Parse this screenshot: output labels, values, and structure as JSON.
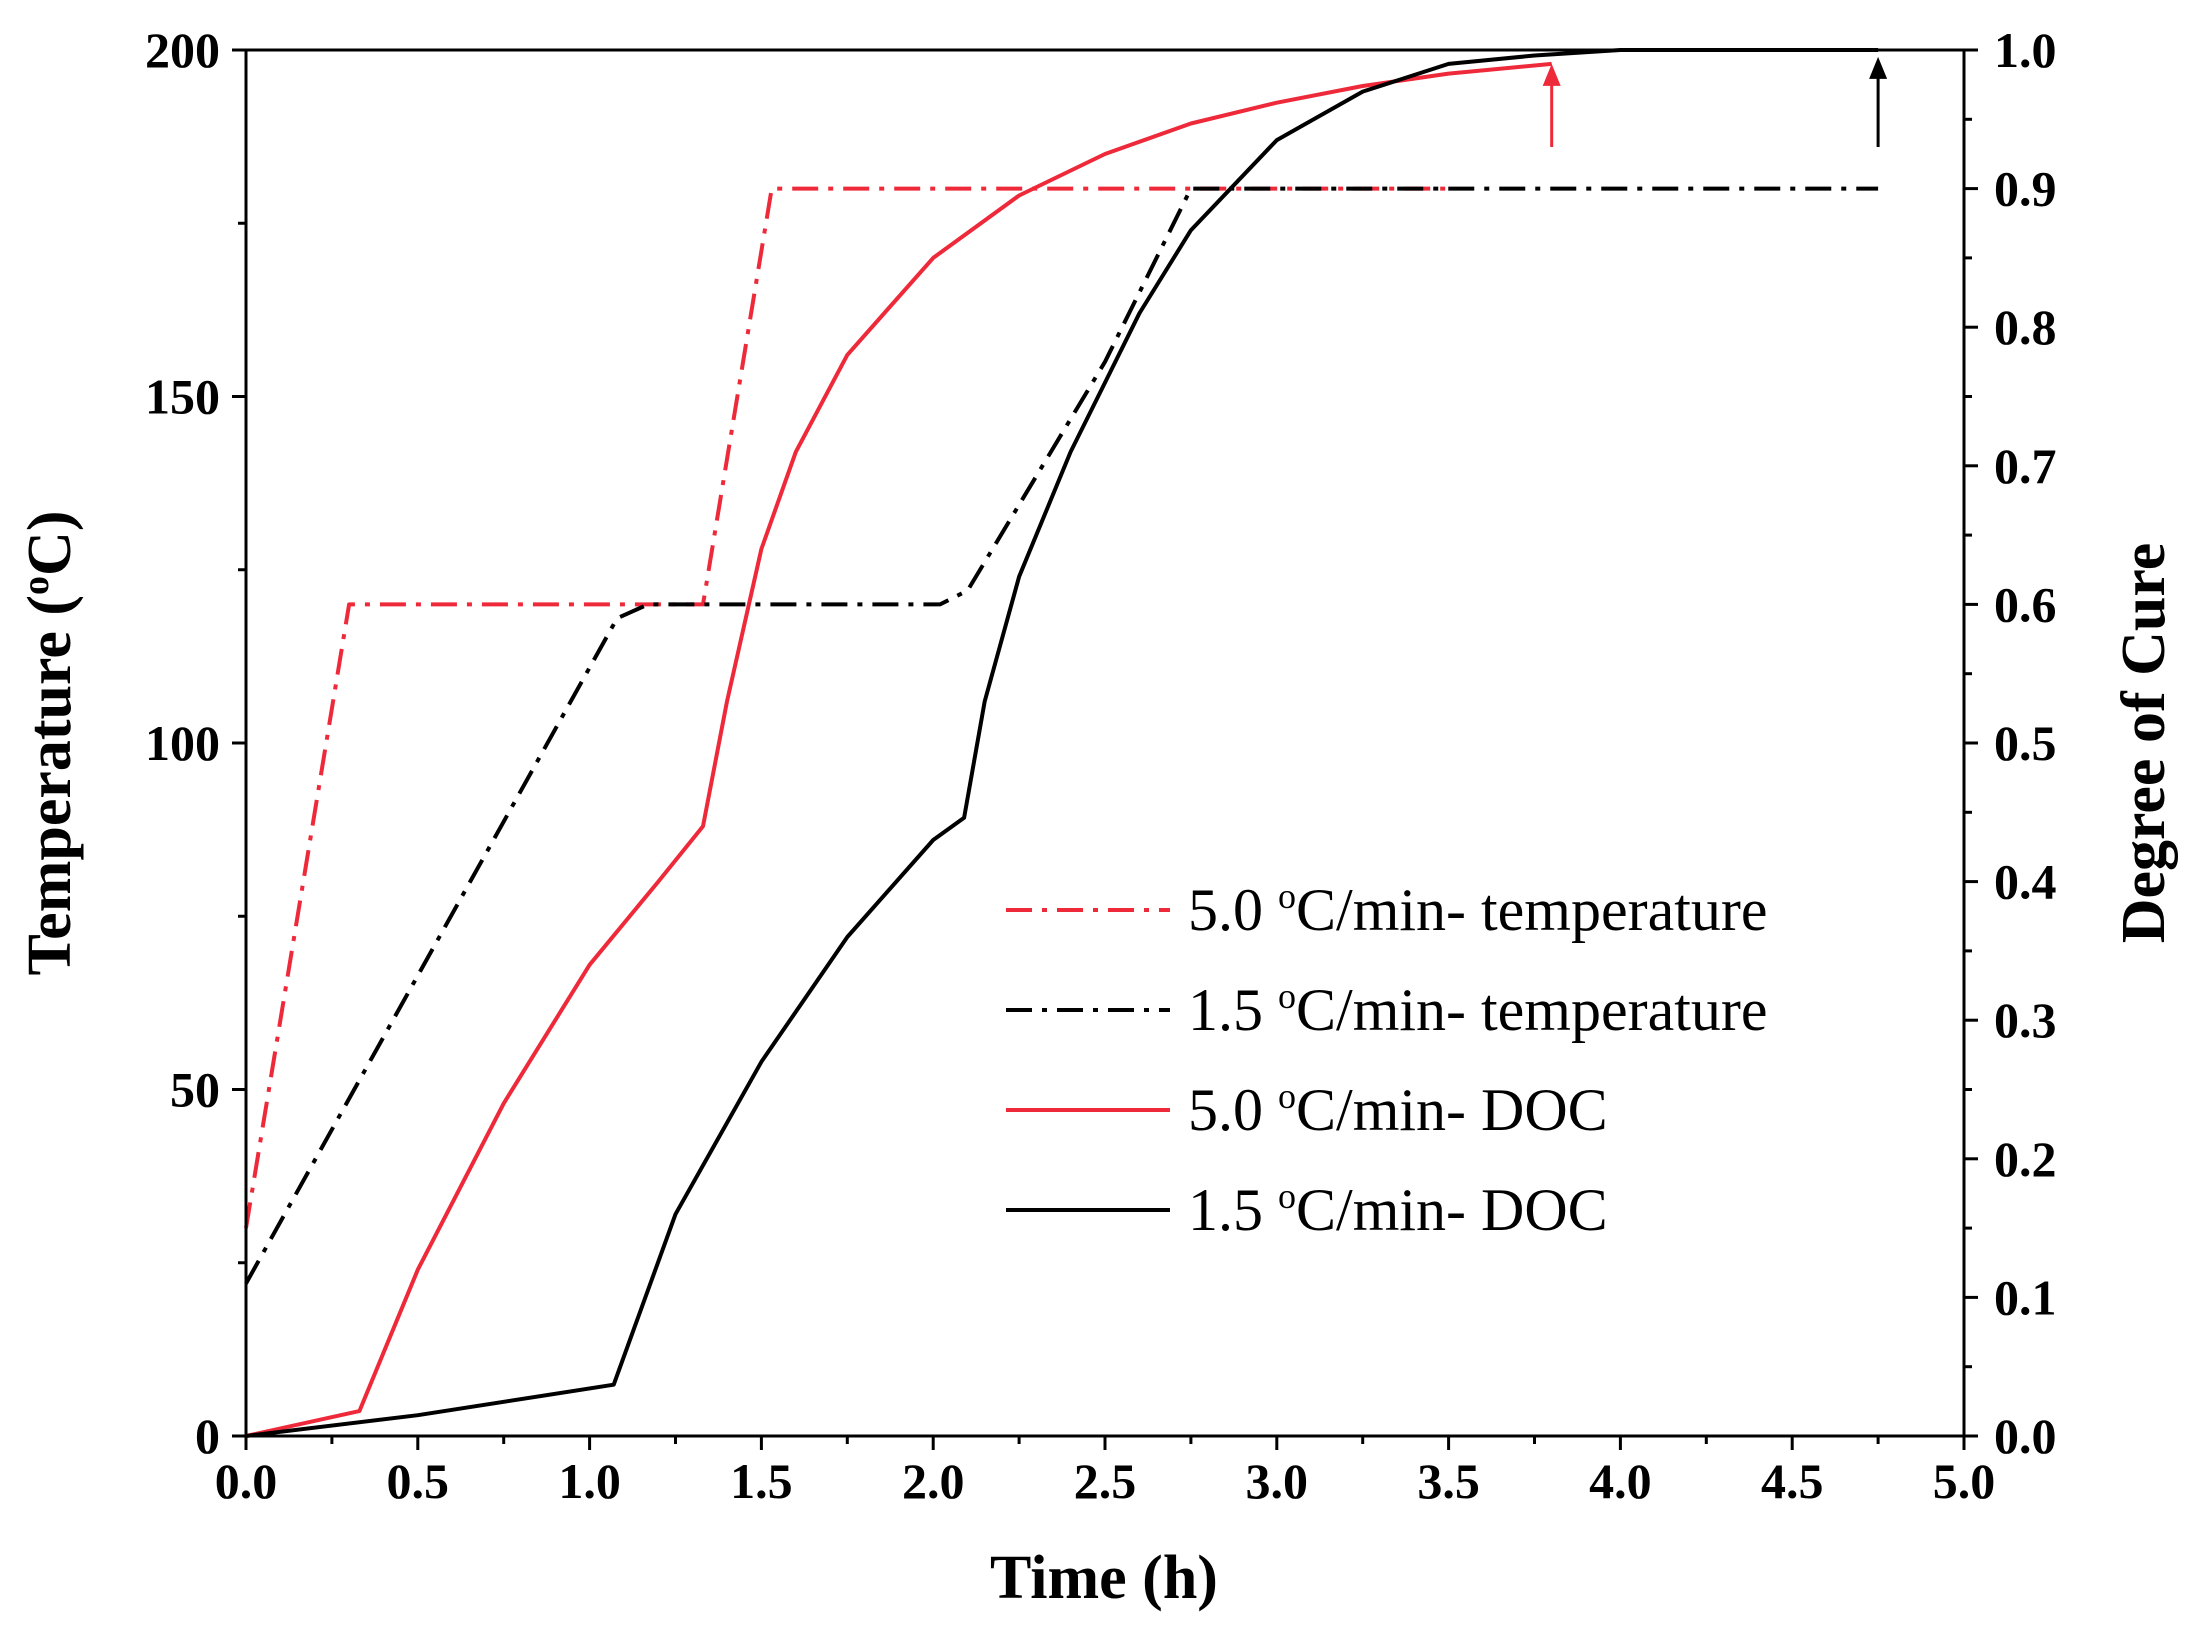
{
  "chart_data": {
    "type": "line",
    "xlabel": "Time (h)",
    "ylabel_left": "Temperature (",
    "ylabel_left_unit": "o",
    "ylabel_left_suffix": "C)",
    "ylabel_right": "Degree of Cure",
    "xlim": [
      0,
      5
    ],
    "ylim_left": [
      0,
      200
    ],
    "ylim_right": [
      0,
      1
    ],
    "x_ticks": [
      "0.0",
      "0.5",
      "1.0",
      "1.5",
      "2.0",
      "2.5",
      "3.0",
      "3.5",
      "4.0",
      "4.5",
      "5.0"
    ],
    "x_tick_values": [
      0,
      0.5,
      1,
      1.5,
      2,
      2.5,
      3,
      3.5,
      4,
      4.5,
      5
    ],
    "y_left_ticks": [
      "0",
      "50",
      "100",
      "150",
      "200"
    ],
    "y_left_tick_values": [
      0,
      50,
      100,
      150,
      200
    ],
    "y_right_ticks": [
      "0.0",
      "0.1",
      "0.2",
      "0.3",
      "0.4",
      "0.5",
      "0.6",
      "0.7",
      "0.8",
      "0.9",
      "1.0"
    ],
    "y_right_tick_values": [
      0,
      0.1,
      0.2,
      0.3,
      0.4,
      0.5,
      0.6,
      0.7,
      0.8,
      0.9,
      1.0
    ],
    "series": [
      {
        "name": "5.0 °C/min- temperature",
        "label_prefix": "5.0 ",
        "label_deg": "o",
        "label_suffix": "C/min- temperature",
        "axis": "left",
        "color": "#ee2a3a",
        "style": "dashdot",
        "x": [
          0,
          0.3,
          1.33,
          1.53,
          3.5
        ],
        "y": [
          30,
          120,
          120,
          180,
          180
        ]
      },
      {
        "name": "1.5 °C/min- temperature",
        "label_prefix": "1.5 ",
        "label_deg": "o",
        "label_suffix": "C/min- temperature",
        "axis": "left",
        "color": "#000000",
        "style": "dashdot",
        "x": [
          0,
          1.08,
          1.17,
          2.02,
          2.1,
          2.5,
          2.75,
          4.5,
          4.75
        ],
        "y": [
          22,
          118,
          120,
          120,
          122,
          155,
          180,
          180,
          180
        ]
      },
      {
        "name": "5.0 °C/min- DOC",
        "label_prefix": "5.0 ",
        "label_deg": "o",
        "label_suffix": "C/min- DOC",
        "axis": "right",
        "color": "#ee2a3a",
        "style": "solid",
        "x": [
          0,
          0.33,
          0.5,
          0.75,
          1.0,
          1.2,
          1.33,
          1.4,
          1.5,
          1.6,
          1.75,
          2.0,
          2.25,
          2.5,
          2.75,
          3.0,
          3.25,
          3.5,
          3.8
        ],
        "y": [
          0,
          0.018,
          0.12,
          0.24,
          0.34,
          0.4,
          0.44,
          0.53,
          0.64,
          0.71,
          0.78,
          0.85,
          0.895,
          0.925,
          0.947,
          0.962,
          0.974,
          0.983,
          0.99
        ]
      },
      {
        "name": "1.5 °C/min- DOC",
        "label_prefix": "1.5 ",
        "label_deg": "o",
        "label_suffix": "C/min- DOC",
        "axis": "right",
        "color": "#000000",
        "style": "solid",
        "x": [
          0,
          0.5,
          1.07,
          1.25,
          1.5,
          1.75,
          2.0,
          2.09,
          2.15,
          2.25,
          2.4,
          2.5,
          2.6,
          2.75,
          3.0,
          3.25,
          3.5,
          3.75,
          4.0,
          4.25,
          4.75
        ],
        "y": [
          0,
          0.015,
          0.037,
          0.16,
          0.27,
          0.36,
          0.43,
          0.446,
          0.53,
          0.62,
          0.71,
          0.76,
          0.81,
          0.87,
          0.935,
          0.97,
          0.99,
          0.996,
          1.0,
          1.0,
          1.0
        ]
      }
    ],
    "annotations": [
      {
        "type": "arrow",
        "x": 3.8,
        "y_from": 0.93,
        "y_to": 0.99,
        "axis": "right",
        "color": "#ee2a3a"
      },
      {
        "type": "arrow",
        "x": 4.75,
        "y_from": 0.93,
        "y_to": 0.995,
        "axis": "right",
        "color": "#000000"
      }
    ],
    "legend_position": "lower-right"
  }
}
